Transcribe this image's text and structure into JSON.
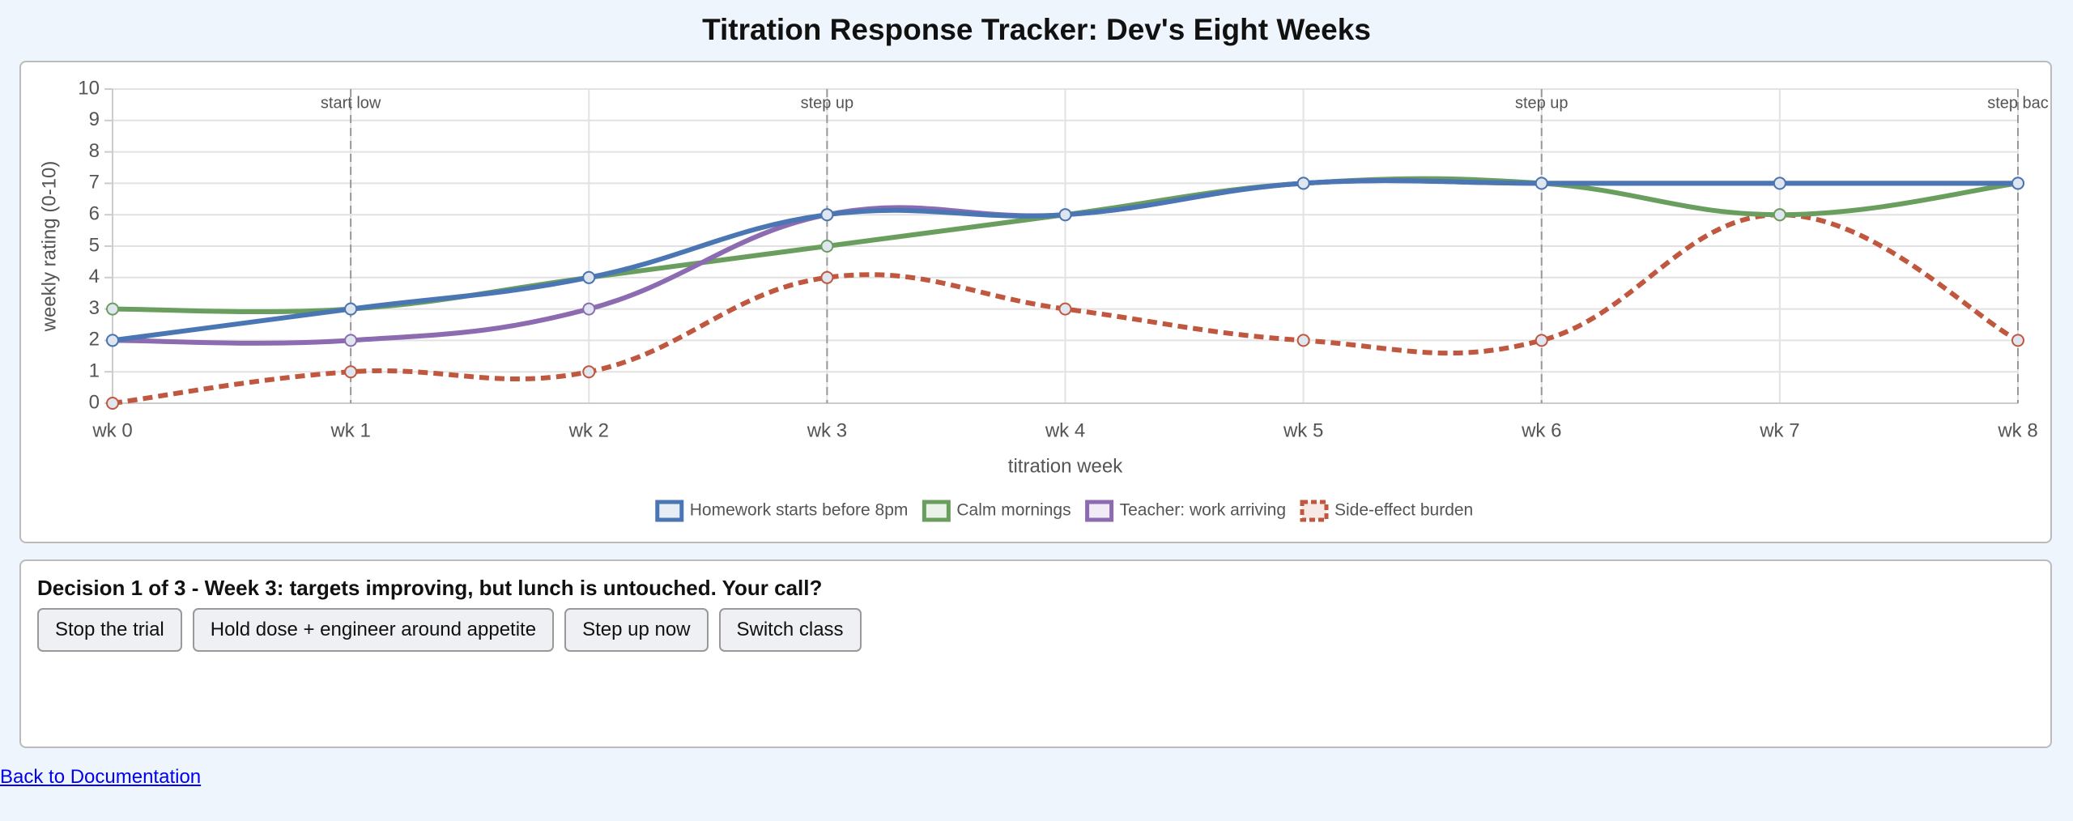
{
  "chart_data": {
    "type": "line",
    "title": "Titration Response Tracker: Dev's Eight Weeks",
    "xlabel": "titration week",
    "ylabel": "weekly rating (0-10)",
    "categories": [
      "wk 0",
      "wk 1",
      "wk 2",
      "wk 3",
      "wk 4",
      "wk 5",
      "wk 6",
      "wk 7",
      "wk 8"
    ],
    "series": [
      {
        "name": "Homework starts before 8pm",
        "color": "#4a76b4",
        "values": [
          2,
          3,
          4,
          6,
          6,
          7,
          7,
          7,
          7
        ]
      },
      {
        "name": "Calm mornings",
        "color": "#6a9e5e",
        "values": [
          3,
          3,
          4,
          5,
          6,
          7,
          7,
          6,
          7
        ]
      },
      {
        "name": "Teacher: work arriving",
        "color": "#8c6bb1",
        "values": [
          2,
          2,
          3,
          6,
          6,
          7,
          7,
          7,
          7
        ]
      },
      {
        "name": "Side-effect burden",
        "color": "#c0573f",
        "dashed": true,
        "values": [
          0,
          1,
          1,
          4,
          3,
          2,
          2,
          6,
          2
        ]
      }
    ],
    "ylim": [
      0,
      10
    ],
    "yticks": [
      0,
      1,
      2,
      3,
      4,
      5,
      6,
      7,
      8,
      9,
      10
    ],
    "grid": true,
    "annotations": [
      {
        "x": "wk 1",
        "label": "start low"
      },
      {
        "x": "wk 3",
        "label": "step up"
      },
      {
        "x": "wk 6",
        "label": "step up"
      },
      {
        "x": "wk 8",
        "label": "step bac"
      }
    ]
  },
  "decision": {
    "prompt": "Decision 1 of 3 - Week 3: targets improving, but lunch is untouched. Your call?",
    "options": [
      "Stop the trial",
      "Hold dose + engineer around appetite",
      "Step up now",
      "Switch class"
    ]
  },
  "link": "Back to Documentation"
}
